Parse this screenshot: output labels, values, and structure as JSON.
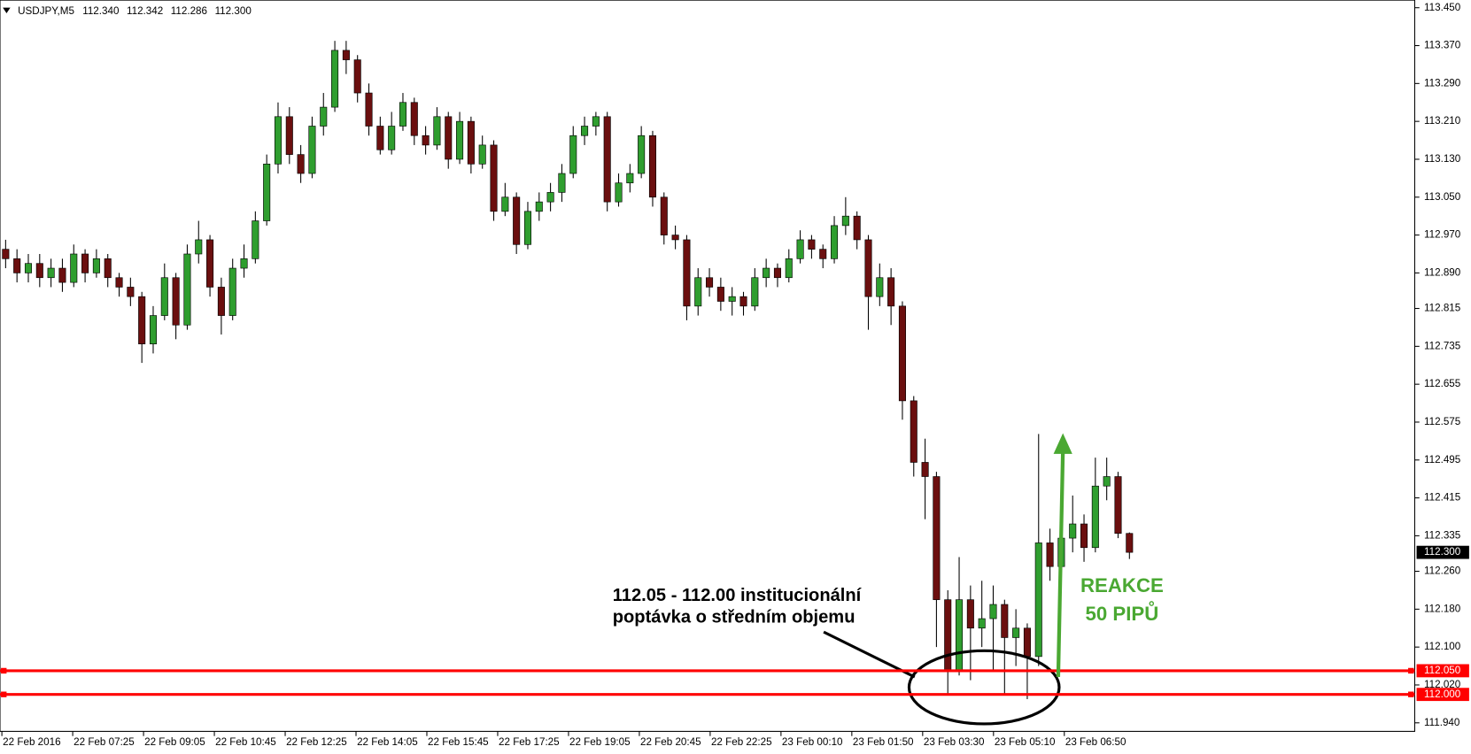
{
  "chart_data": {
    "type": "candlestick",
    "symbol": "USDJPY,M5",
    "header_values": [
      "112.340",
      "112.342",
      "112.286",
      "112.300"
    ],
    "colors": {
      "up": "#2f9e2f",
      "down": "#6b0f0f",
      "wick": "#000000"
    },
    "open": [
      112.94,
      112.92,
      112.89,
      112.91,
      112.88,
      112.9,
      112.87,
      112.93,
      112.89,
      112.92,
      112.88,
      112.86,
      112.84,
      112.74,
      112.8,
      112.88,
      112.78,
      112.93,
      112.96,
      112.86,
      112.8,
      112.9,
      112.92,
      113.0,
      113.12,
      113.22,
      113.14,
      113.1,
      113.2,
      113.24,
      113.36,
      113.34,
      113.27,
      113.2,
      113.15,
      113.2,
      113.25,
      113.18,
      113.16,
      113.22,
      113.13,
      113.21,
      113.12,
      113.16,
      113.02,
      113.05,
      112.95,
      113.02,
      113.04,
      113.06,
      113.1,
      113.18,
      113.2,
      113.22,
      113.04,
      113.08,
      113.1,
      113.18,
      113.05,
      112.97,
      112.96,
      112.82,
      112.88,
      112.86,
      112.83,
      112.84,
      112.82,
      112.88,
      112.9,
      112.88,
      112.92,
      112.96,
      112.94,
      112.92,
      112.99,
      113.01,
      112.96,
      112.84,
      112.88,
      112.82,
      112.62,
      112.49,
      112.46,
      112.2,
      112.05,
      112.2,
      112.14,
      112.16,
      112.19,
      112.12,
      112.14,
      112.08,
      112.32,
      112.27,
      112.33,
      112.36,
      112.31,
      112.44,
      112.46,
      112.34
    ],
    "high": [
      112.96,
      112.94,
      112.93,
      112.93,
      112.92,
      112.92,
      112.95,
      112.94,
      112.94,
      112.93,
      112.89,
      112.88,
      112.85,
      112.82,
      112.91,
      112.89,
      112.95,
      113.0,
      112.97,
      112.88,
      112.92,
      112.95,
      113.02,
      113.14,
      113.25,
      113.24,
      113.16,
      113.22,
      113.27,
      113.38,
      113.38,
      113.35,
      113.29,
      113.22,
      113.23,
      113.27,
      113.26,
      113.2,
      113.24,
      113.23,
      113.23,
      113.22,
      113.18,
      113.17,
      113.08,
      113.06,
      113.04,
      113.06,
      113.08,
      113.12,
      113.2,
      113.22,
      113.23,
      113.23,
      113.1,
      113.12,
      113.2,
      113.19,
      113.06,
      112.99,
      112.97,
      112.9,
      112.9,
      112.88,
      112.86,
      112.85,
      112.9,
      112.92,
      112.91,
      112.94,
      112.98,
      112.97,
      112.95,
      113.01,
      113.05,
      113.02,
      112.97,
      112.91,
      112.9,
      112.83,
      112.63,
      112.54,
      112.47,
      112.22,
      112.29,
      112.23,
      112.24,
      112.23,
      112.2,
      112.18,
      112.15,
      112.55,
      112.35,
      112.38,
      112.42,
      112.38,
      112.5,
      112.5,
      112.47,
      112.342
    ],
    "low": [
      112.9,
      112.87,
      112.87,
      112.86,
      112.86,
      112.85,
      112.86,
      112.87,
      112.88,
      112.86,
      112.84,
      112.82,
      112.7,
      112.72,
      112.79,
      112.75,
      112.77,
      112.91,
      112.84,
      112.76,
      112.79,
      112.88,
      112.91,
      112.99,
      113.1,
      113.12,
      113.08,
      113.09,
      113.18,
      113.23,
      113.31,
      113.25,
      113.18,
      113.14,
      113.14,
      113.19,
      113.16,
      113.14,
      113.15,
      113.11,
      113.12,
      113.1,
      113.11,
      113.0,
      113.01,
      112.93,
      112.94,
      113.0,
      113.02,
      113.04,
      113.09,
      113.16,
      113.18,
      113.02,
      113.03,
      113.06,
      113.09,
      113.03,
      112.95,
      112.94,
      112.79,
      112.8,
      112.84,
      112.81,
      112.8,
      112.8,
      112.81,
      112.86,
      112.86,
      112.87,
      112.91,
      112.92,
      112.9,
      112.91,
      112.97,
      112.94,
      112.77,
      112.82,
      112.78,
      112.58,
      112.46,
      112.37,
      112.1,
      112.0,
      112.04,
      112.03,
      112.1,
      112.05,
      112.0,
      112.06,
      111.99,
      112.06,
      112.24,
      112.25,
      112.3,
      112.28,
      112.3,
      112.41,
      112.33,
      112.286
    ],
    "close": [
      112.92,
      112.89,
      112.91,
      112.88,
      112.9,
      112.87,
      112.93,
      112.89,
      112.92,
      112.88,
      112.86,
      112.84,
      112.74,
      112.8,
      112.88,
      112.78,
      112.93,
      112.96,
      112.86,
      112.8,
      112.9,
      112.92,
      113.0,
      113.12,
      113.22,
      113.14,
      113.1,
      113.2,
      113.24,
      113.36,
      113.34,
      113.27,
      113.2,
      113.15,
      113.2,
      113.25,
      113.18,
      113.16,
      113.22,
      113.13,
      113.21,
      113.12,
      113.16,
      113.02,
      113.05,
      112.95,
      113.02,
      113.04,
      113.06,
      113.1,
      113.18,
      113.2,
      113.22,
      113.04,
      113.08,
      113.1,
      113.18,
      113.05,
      112.97,
      112.96,
      112.82,
      112.88,
      112.86,
      112.83,
      112.84,
      112.82,
      112.88,
      112.9,
      112.88,
      112.92,
      112.96,
      112.94,
      112.92,
      112.99,
      113.01,
      112.96,
      112.84,
      112.88,
      112.82,
      112.62,
      112.49,
      112.46,
      112.2,
      112.05,
      112.2,
      112.14,
      112.16,
      112.19,
      112.12,
      112.14,
      112.08,
      112.32,
      112.27,
      112.33,
      112.36,
      112.31,
      112.44,
      112.46,
      112.34,
      112.3
    ],
    "x_labels": [
      "22 Feb 2016",
      "22 Feb 07:25",
      "22 Feb 09:05",
      "22 Feb 10:45",
      "22 Feb 12:25",
      "22 Feb 14:05",
      "22 Feb 15:45",
      "22 Feb 17:25",
      "22 Feb 19:05",
      "22 Feb 20:45",
      "22 Feb 22:25",
      "23 Feb 00:10",
      "23 Feb 01:50",
      "23 Feb 03:30",
      "23 Feb 05:10",
      "23 Feb 06:50"
    ],
    "ylim": [
      111.922,
      113.466
    ],
    "yticks": [
      {
        "value": 113.45,
        "label": "113.450"
      },
      {
        "value": 113.37,
        "label": "113.370"
      },
      {
        "value": 113.29,
        "label": "113.290"
      },
      {
        "value": 113.21,
        "label": "113.210"
      },
      {
        "value": 113.13,
        "label": "113.130"
      },
      {
        "value": 113.05,
        "label": "113.050"
      },
      {
        "value": 112.97,
        "label": "112.970"
      },
      {
        "value": 112.89,
        "label": "112.890"
      },
      {
        "value": 112.815,
        "label": "112.815"
      },
      {
        "value": 112.735,
        "label": "112.735"
      },
      {
        "value": 112.655,
        "label": "112.655"
      },
      {
        "value": 112.575,
        "label": "112.575"
      },
      {
        "value": 112.495,
        "label": "112.495"
      },
      {
        "value": 112.415,
        "label": "112.415"
      },
      {
        "value": 112.335,
        "label": "112.335"
      },
      {
        "value": 112.26,
        "label": "112.260"
      },
      {
        "value": 112.18,
        "label": "112.180"
      },
      {
        "value": 112.1,
        "label": "112.100"
      },
      {
        "value": 112.02,
        "label": "112.020"
      },
      {
        "value": 111.94,
        "label": "111.940"
      }
    ],
    "current_price": {
      "value": 112.3,
      "label": "112.300"
    },
    "levels": [
      {
        "value": 112.05,
        "label": "112.050",
        "color": "#ff0000"
      },
      {
        "value": 112.0,
        "label": "112.000",
        "color": "#ff0000"
      }
    ],
    "annotation": [
      "112.05 - 112.00 institucionální",
      "poptávka o středním objemu"
    ],
    "reaction": [
      "REAKCE",
      "50 PIPŮ"
    ],
    "reaction_color": "#4aa832"
  }
}
